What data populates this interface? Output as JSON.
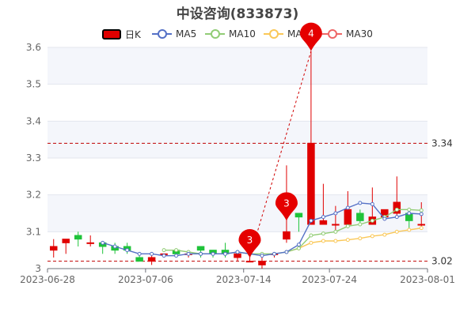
{
  "chart_data": {
    "type": "candlestick",
    "title": "中设咨询(833873)",
    "legend": [
      {
        "label": "日K",
        "color": "#e00000"
      },
      {
        "label": "MA5",
        "color": "#5470c6"
      },
      {
        "label": "MA10",
        "color": "#91cc75"
      },
      {
        "label": "MA20",
        "color": "#fac858"
      },
      {
        "label": "MA30",
        "color": "#ee6666"
      }
    ],
    "legend_visible_labels": [
      "日K",
      "MA5",
      "MA10",
      "MA",
      "MA30"
    ],
    "ylim": [
      3.0,
      3.6
    ],
    "y_ticks": [
      "3",
      "3.1",
      "3.2",
      "3.3",
      "3.4",
      "3.5",
      "3.6"
    ],
    "x_ticks": [
      "2023-06-28",
      "2023-07-06",
      "2023-07-14",
      "2023-07-24",
      "2023-08-01"
    ],
    "up_color": "#e00000",
    "down_color": "#1fc33a",
    "candles": [
      {
        "o": 3.05,
        "c": 3.06,
        "h": 3.08,
        "l": 3.03
      },
      {
        "o": 3.07,
        "c": 3.08,
        "h": 3.08,
        "l": 3.04
      },
      {
        "o": 3.09,
        "c": 3.08,
        "h": 3.1,
        "l": 3.06
      },
      {
        "o": 3.07,
        "c": 3.07,
        "h": 3.09,
        "l": 3.06
      },
      {
        "o": 3.07,
        "c": 3.06,
        "h": 3.07,
        "l": 3.04
      },
      {
        "o": 3.06,
        "c": 3.05,
        "h": 3.07,
        "l": 3.04
      },
      {
        "o": 3.06,
        "c": 3.05,
        "h": 3.07,
        "l": 3.04
      },
      {
        "o": 3.03,
        "c": 3.02,
        "h": 3.04,
        "l": 3.02
      },
      {
        "o": 3.02,
        "c": 3.03,
        "h": 3.04,
        "l": 3.01
      },
      {
        "o": 3.04,
        "c": 3.04,
        "h": 3.04,
        "l": 3.03
      },
      {
        "o": 3.05,
        "c": 3.04,
        "h": 3.05,
        "l": 3.03
      },
      {
        "o": 3.04,
        "c": 3.04,
        "h": 3.05,
        "l": 3.03
      },
      {
        "o": 3.06,
        "c": 3.05,
        "h": 3.06,
        "l": 3.03
      },
      {
        "o": 3.05,
        "c": 3.04,
        "h": 3.05,
        "l": 3.03
      },
      {
        "o": 3.05,
        "c": 3.04,
        "h": 3.07,
        "l": 3.03
      },
      {
        "o": 3.03,
        "c": 3.04,
        "h": 3.05,
        "l": 3.02
      },
      {
        "o": 3.02,
        "c": 3.02,
        "h": 3.04,
        "l": 3.02
      },
      {
        "o": 3.01,
        "c": 3.02,
        "h": 3.04,
        "l": 3.0
      },
      {
        "o": 3.04,
        "c": 3.04,
        "h": 3.04,
        "l": 3.03
      },
      {
        "o": 3.08,
        "c": 3.1,
        "h": 3.28,
        "l": 3.07
      },
      {
        "o": 3.15,
        "c": 3.14,
        "h": 3.15,
        "l": 3.1
      },
      {
        "o": 3.12,
        "c": 3.34,
        "h": 3.59,
        "l": 3.12
      },
      {
        "o": 3.12,
        "c": 3.13,
        "h": 3.23,
        "l": 3.12
      },
      {
        "o": 3.12,
        "c": 3.12,
        "h": 3.17,
        "l": 3.1
      },
      {
        "o": 3.12,
        "c": 3.16,
        "h": 3.21,
        "l": 3.11
      },
      {
        "o": 3.15,
        "c": 3.13,
        "h": 3.16,
        "l": 3.12
      },
      {
        "o": 3.12,
        "c": 3.14,
        "h": 3.22,
        "l": 3.12
      },
      {
        "o": 3.14,
        "c": 3.16,
        "h": 3.16,
        "l": 3.13
      },
      {
        "o": 3.15,
        "c": 3.18,
        "h": 3.25,
        "l": 3.14
      },
      {
        "o": 3.15,
        "c": 3.13,
        "h": 3.16,
        "l": 3.11
      },
      {
        "o": 3.12,
        "c": 3.12,
        "h": 3.18,
        "l": 3.11
      }
    ],
    "ma5": [
      null,
      null,
      null,
      null,
      3.07,
      3.06,
      3.05,
      3.04,
      3.04,
      3.035,
      3.035,
      3.04,
      3.04,
      3.04,
      3.04,
      3.045,
      3.04,
      3.035,
      3.04,
      3.045,
      3.065,
      3.13,
      3.14,
      3.15,
      3.165,
      3.178,
      3.175,
      3.135,
      3.14,
      3.15,
      3.148
    ],
    "ma10": [
      null,
      null,
      null,
      null,
      null,
      null,
      null,
      null,
      null,
      3.05,
      3.05,
      3.045,
      3.04,
      3.04,
      3.04,
      3.045,
      3.04,
      3.04,
      3.04,
      3.045,
      3.055,
      3.09,
      3.095,
      3.1,
      3.115,
      3.12,
      3.13,
      3.14,
      3.16,
      3.16,
      3.158
    ],
    "ma20": [
      null,
      null,
      null,
      null,
      null,
      null,
      null,
      null,
      null,
      null,
      null,
      null,
      null,
      null,
      null,
      null,
      null,
      null,
      null,
      3.045,
      3.055,
      3.07,
      3.075,
      3.075,
      3.078,
      3.082,
      3.088,
      3.092,
      3.1,
      3.105,
      3.11
    ],
    "mark_lines": [
      {
        "value": 3.34,
        "label": "3.34"
      },
      {
        "value": 3.02,
        "label": "3.02"
      }
    ],
    "mark_points": [
      {
        "index": 21,
        "value": 3.59,
        "label": "4"
      },
      {
        "index": 19,
        "value": 3.13,
        "label": "3"
      },
      {
        "index": 16,
        "value": 3.03,
        "label": "3"
      }
    ]
  }
}
